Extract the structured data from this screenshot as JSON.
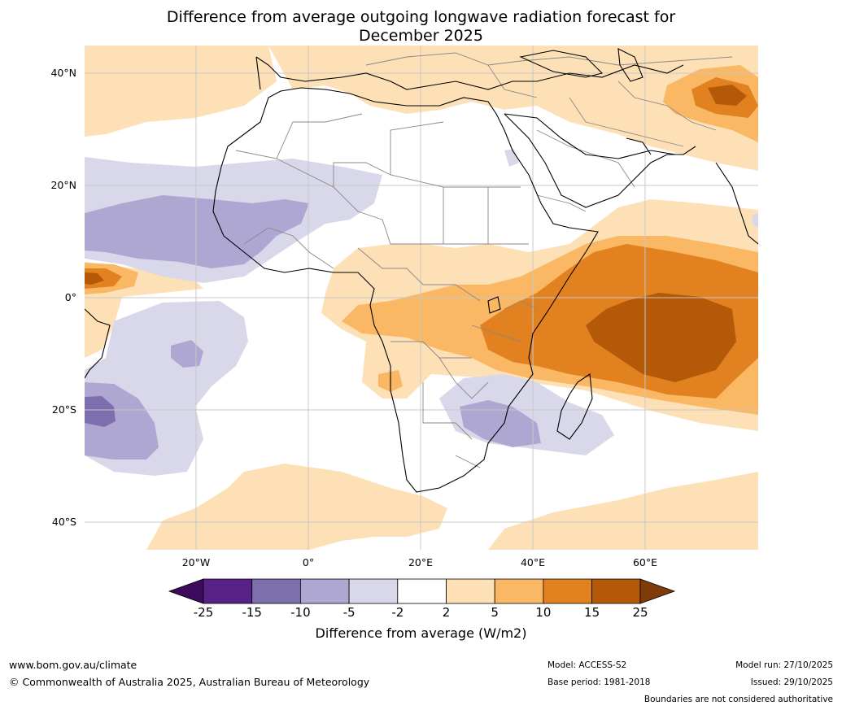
{
  "title": {
    "line1": "Difference from average outgoing longwave radiation forecast for",
    "line2": "December 2025"
  },
  "axes": {
    "lat_labels": [
      "40°N",
      "20°N",
      "0°",
      "20°S",
      "40°S"
    ],
    "lon_labels": [
      "20°W",
      "0°",
      "20°E",
      "40°E",
      "60°E"
    ]
  },
  "colorbar": {
    "ticks": [
      "-25",
      "-15",
      "-10",
      "-5",
      "-2",
      "2",
      "5",
      "10",
      "15",
      "25"
    ],
    "colors": [
      "#3d0a5e",
      "#572287",
      "#7d6eae",
      "#ada7d1",
      "#d8d8ea",
      "#ffffff",
      "#fde0b6",
      "#fab764",
      "#e1811f",
      "#b35908",
      "#7f3b08"
    ],
    "label": "Difference from average (W/m2)"
  },
  "footer": {
    "url": "www.bom.gov.au/climate",
    "copyright": "© Commonwealth of Australia 2025, Australian Bureau of Meteorology",
    "model": "Model: ACCESS-S2",
    "base_period": "Base period: 1981-2018",
    "model_run": "Model run: 27/10/2025",
    "issued": "Issued: 29/10/2025",
    "disclaimer": "Boundaries are not considered authoritative"
  }
}
